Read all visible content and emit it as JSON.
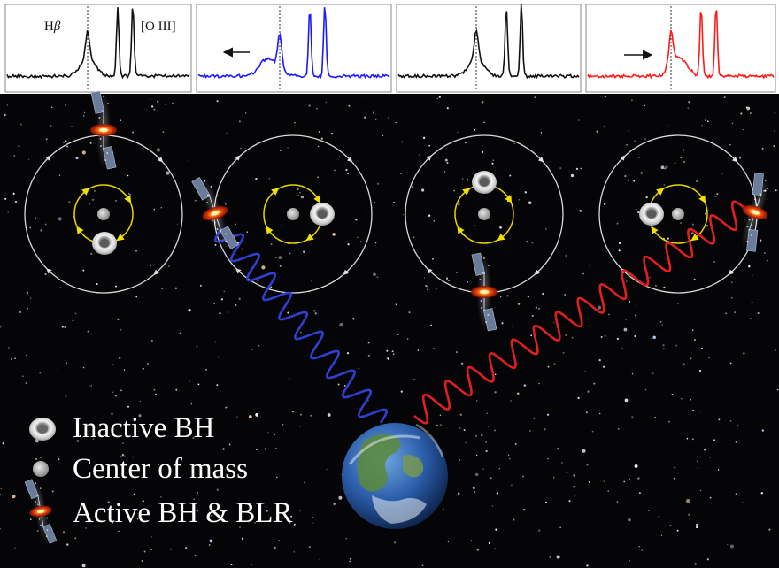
{
  "panel_labels": {
    "hbeta_prefix": "H",
    "hbeta_symbol": "β",
    "oiii": "[O III]"
  },
  "colors": {
    "panel1": "#111111",
    "panel2": "#1a1aff",
    "panel3": "#111111",
    "panel4": "#ff1a1a",
    "blue_wave": "#2f3fd0",
    "red_wave": "#e02020",
    "outer_orbit": "#d8d8d8",
    "inner_orbit": "#e8d400"
  },
  "panels": [
    {
      "shift": "none",
      "arrow": "none"
    },
    {
      "shift": "blue",
      "arrow": "left"
    },
    {
      "shift": "none",
      "arrow": "none"
    },
    {
      "shift": "red",
      "arrow": "right"
    }
  ],
  "legend": [
    {
      "icon": "inactive-bh-icon",
      "label": "Inactive BH"
    },
    {
      "icon": "center-of-mass-icon",
      "label": "Center of mass"
    },
    {
      "icon": "active-bh-icon",
      "label": "Active BH & BLR"
    }
  ]
}
